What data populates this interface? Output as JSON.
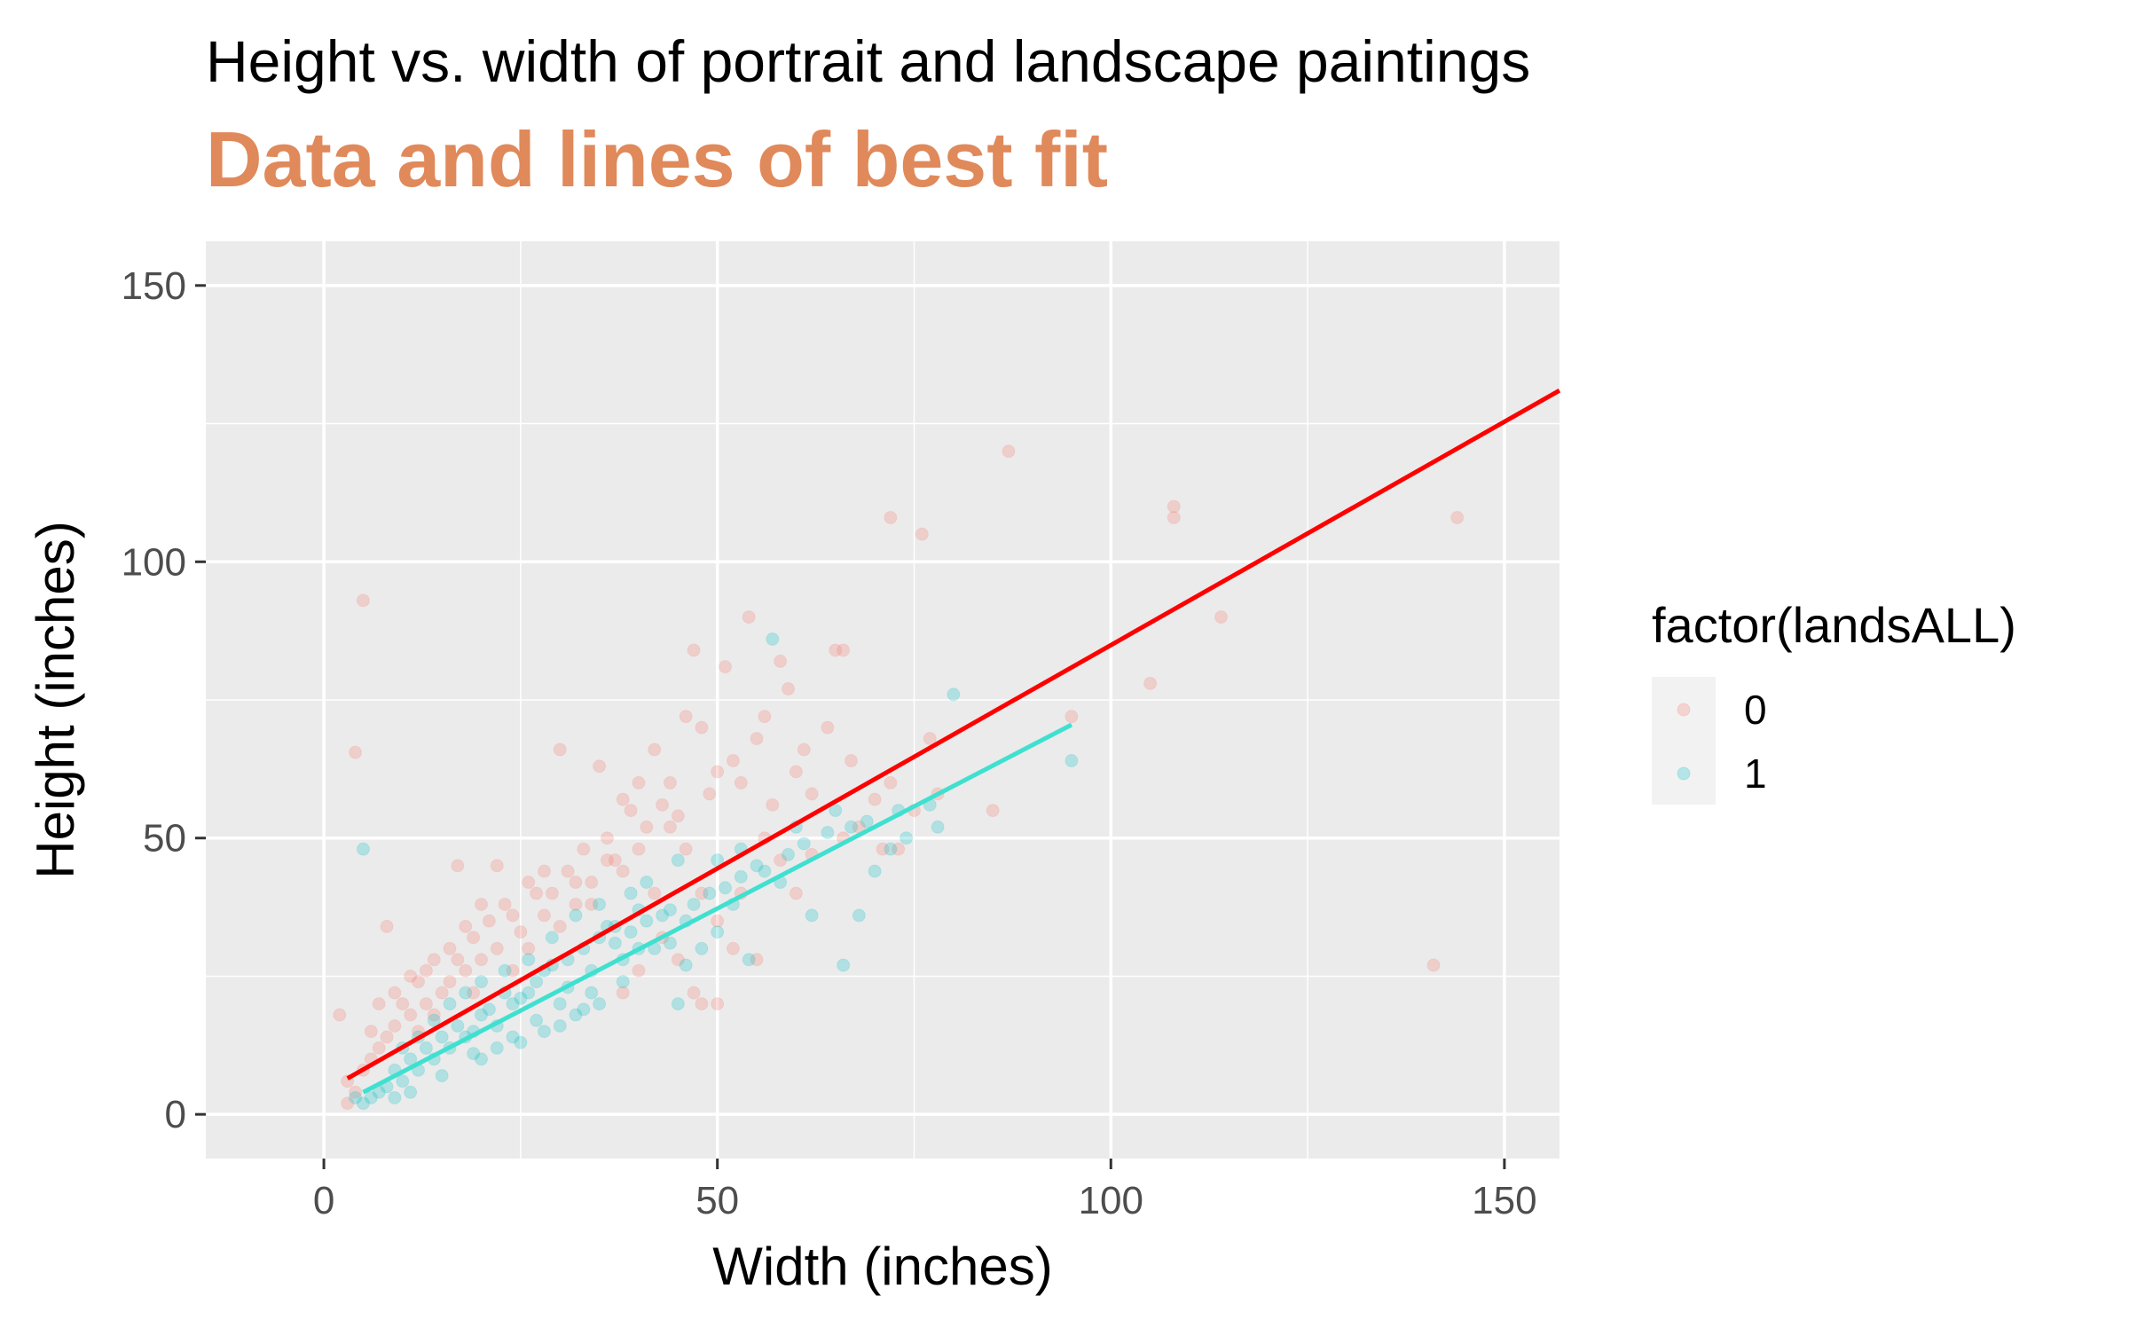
{
  "chart_data": {
    "type": "scatter",
    "title": "Height vs. width of portrait and landscape paintings",
    "subtitle": "Data and lines of best fit",
    "xlabel": "Width (inches)",
    "ylabel": "Height (inches)",
    "xlim": [
      -15,
      157
    ],
    "ylim": [
      -8,
      158
    ],
    "x_ticks": [
      0,
      50,
      100,
      150
    ],
    "y_ticks": [
      0,
      50,
      100,
      150
    ],
    "x_tick_labels": [
      "0",
      "50",
      "100",
      "150"
    ],
    "y_tick_labels": [
      "0",
      "50",
      "100",
      "150"
    ],
    "grid": true,
    "legend": {
      "title": "factor(landsALL)",
      "position": "right"
    },
    "colors": {
      "panel": "#EBEBEB",
      "grid": "#FFFFFF",
      "subtitle": "#E0895A"
    },
    "series": [
      {
        "name": "0",
        "point_color": "#F8766D",
        "point_opacity": 0.25,
        "fit_color": "#FF0000",
        "fit_line": [
          [
            3,
            6.5
          ],
          [
            157,
            131
          ]
        ],
        "points": [
          [
            2,
            18
          ],
          [
            5,
            93
          ],
          [
            4,
            65.5
          ],
          [
            8,
            34
          ],
          [
            17,
            45
          ],
          [
            24,
            36
          ],
          [
            27,
            40
          ],
          [
            30,
            66
          ],
          [
            32,
            38
          ],
          [
            35,
            63
          ],
          [
            38,
            57
          ],
          [
            40,
            60
          ],
          [
            42,
            66
          ],
          [
            46,
            72
          ],
          [
            47,
            84
          ],
          [
            48,
            70
          ],
          [
            50,
            62
          ],
          [
            51,
            81
          ],
          [
            54,
            90
          ],
          [
            56,
            72
          ],
          [
            58,
            82
          ],
          [
            59,
            77
          ],
          [
            61,
            66
          ],
          [
            65,
            84
          ],
          [
            66,
            84
          ],
          [
            67,
            64
          ],
          [
            70,
            57
          ],
          [
            72,
            108
          ],
          [
            76,
            105
          ],
          [
            73,
            48
          ],
          [
            77,
            68
          ],
          [
            78,
            58
          ],
          [
            85,
            55
          ],
          [
            87,
            120
          ],
          [
            95,
            72
          ],
          [
            105,
            78
          ],
          [
            108,
            110
          ],
          [
            108,
            108
          ],
          [
            114,
            90
          ],
          [
            144,
            108
          ],
          [
            141,
            27
          ],
          [
            10,
            20
          ],
          [
            12,
            24
          ],
          [
            14,
            28
          ],
          [
            15,
            22
          ],
          [
            16,
            30
          ],
          [
            18,
            26
          ],
          [
            19,
            32
          ],
          [
            20,
            28
          ],
          [
            21,
            35
          ],
          [
            22,
            30
          ],
          [
            23,
            38
          ],
          [
            25,
            33
          ],
          [
            26,
            42
          ],
          [
            28,
            36
          ],
          [
            29,
            40
          ],
          [
            31,
            44
          ],
          [
            33,
            48
          ],
          [
            34,
            42
          ],
          [
            36,
            50
          ],
          [
            37,
            46
          ],
          [
            39,
            55
          ],
          [
            41,
            52
          ],
          [
            43,
            56
          ],
          [
            44,
            60
          ],
          [
            45,
            54
          ],
          [
            49,
            58
          ],
          [
            52,
            64
          ],
          [
            53,
            60
          ],
          [
            55,
            68
          ],
          [
            57,
            56
          ],
          [
            60,
            62
          ],
          [
            62,
            58
          ],
          [
            64,
            70
          ],
          [
            6,
            10
          ],
          [
            7,
            12
          ],
          [
            8,
            14
          ],
          [
            9,
            16
          ],
          [
            11,
            18
          ],
          [
            13,
            20
          ],
          [
            4,
            4
          ],
          [
            5,
            8
          ],
          [
            3,
            6
          ],
          [
            3,
            2
          ],
          [
            6,
            15
          ],
          [
            7,
            20
          ],
          [
            9,
            22
          ],
          [
            11,
            25
          ],
          [
            12,
            15
          ],
          [
            13,
            26
          ],
          [
            14,
            18
          ],
          [
            16,
            24
          ],
          [
            17,
            28
          ],
          [
            18,
            34
          ],
          [
            19,
            22
          ],
          [
            20,
            38
          ],
          [
            22,
            45
          ],
          [
            24,
            26
          ],
          [
            26,
            30
          ],
          [
            28,
            44
          ],
          [
            30,
            34
          ],
          [
            32,
            42
          ],
          [
            34,
            38
          ],
          [
            36,
            46
          ],
          [
            38,
            44
          ],
          [
            40,
            48
          ],
          [
            42,
            40
          ],
          [
            44,
            52
          ],
          [
            46,
            48
          ],
          [
            48,
            40
          ],
          [
            50,
            35
          ],
          [
            52,
            30
          ],
          [
            48,
            20
          ],
          [
            50,
            20
          ],
          [
            45,
            28
          ],
          [
            47,
            22
          ],
          [
            40,
            26
          ],
          [
            38,
            22
          ],
          [
            43,
            32
          ],
          [
            53,
            40
          ],
          [
            55,
            28
          ],
          [
            56,
            50
          ],
          [
            58,
            46
          ],
          [
            60,
            40
          ],
          [
            62,
            47
          ],
          [
            66,
            50
          ],
          [
            68,
            52
          ],
          [
            72,
            60
          ],
          [
            75,
            55
          ],
          [
            71,
            48
          ]
        ]
      },
      {
        "name": "1",
        "point_color": "#00BFC4",
        "point_opacity": 0.25,
        "fit_color": "#40E0D0",
        "fit_line": [
          [
            5,
            4
          ],
          [
            95,
            70.5
          ]
        ],
        "points": [
          [
            5,
            48
          ],
          [
            57,
            86
          ],
          [
            80,
            76
          ],
          [
            95,
            64
          ],
          [
            68,
            36
          ],
          [
            66,
            27
          ],
          [
            72,
            48
          ],
          [
            78,
            52
          ],
          [
            74,
            50
          ],
          [
            70,
            44
          ],
          [
            62,
            36
          ],
          [
            58,
            42
          ],
          [
            55,
            45
          ],
          [
            52,
            38
          ],
          [
            50,
            33
          ],
          [
            48,
            30
          ],
          [
            46,
            27
          ],
          [
            45,
            20
          ],
          [
            43,
            36
          ],
          [
            40,
            30
          ],
          [
            38,
            24
          ],
          [
            36,
            34
          ],
          [
            34,
            22
          ],
          [
            32,
            18
          ],
          [
            30,
            20
          ],
          [
            28,
            26
          ],
          [
            26,
            22
          ],
          [
            24,
            20
          ],
          [
            22,
            16
          ],
          [
            20,
            18
          ],
          [
            18,
            14
          ],
          [
            16,
            12
          ],
          [
            14,
            10
          ],
          [
            12,
            8
          ],
          [
            10,
            6
          ],
          [
            8,
            5
          ],
          [
            6,
            3
          ],
          [
            5,
            2
          ],
          [
            4,
            3
          ],
          [
            7,
            4
          ],
          [
            9,
            8
          ],
          [
            11,
            10
          ],
          [
            13,
            12
          ],
          [
            15,
            14
          ],
          [
            17,
            16
          ],
          [
            19,
            15
          ],
          [
            21,
            19
          ],
          [
            23,
            22
          ],
          [
            25,
            21
          ],
          [
            27,
            24
          ],
          [
            29,
            27
          ],
          [
            31,
            28
          ],
          [
            33,
            30
          ],
          [
            35,
            32
          ],
          [
            37,
            34
          ],
          [
            39,
            33
          ],
          [
            41,
            35
          ],
          [
            44,
            37
          ],
          [
            47,
            38
          ],
          [
            49,
            40
          ],
          [
            51,
            41
          ],
          [
            53,
            43
          ],
          [
            56,
            44
          ],
          [
            59,
            47
          ],
          [
            61,
            49
          ],
          [
            64,
            51
          ],
          [
            67,
            52
          ],
          [
            69,
            53
          ],
          [
            73,
            55
          ],
          [
            77,
            56
          ],
          [
            20,
            10
          ],
          [
            22,
            12
          ],
          [
            25,
            13
          ],
          [
            28,
            15
          ],
          [
            30,
            16
          ],
          [
            33,
            19
          ],
          [
            35,
            20
          ],
          [
            38,
            28
          ],
          [
            42,
            30
          ],
          [
            44,
            31
          ],
          [
            10,
            12
          ],
          [
            12,
            14
          ],
          [
            14,
            17
          ],
          [
            16,
            20
          ],
          [
            18,
            22
          ],
          [
            20,
            24
          ],
          [
            23,
            26
          ],
          [
            26,
            28
          ],
          [
            29,
            32
          ],
          [
            32,
            36
          ],
          [
            35,
            38
          ],
          [
            39,
            40
          ],
          [
            41,
            42
          ],
          [
            45,
            46
          ],
          [
            53,
            48
          ],
          [
            60,
            52
          ],
          [
            65,
            55
          ],
          [
            9,
            3
          ],
          [
            11,
            4
          ],
          [
            15,
            7
          ],
          [
            19,
            11
          ],
          [
            24,
            14
          ],
          [
            27,
            17
          ],
          [
            31,
            23
          ],
          [
            34,
            26
          ],
          [
            37,
            31
          ],
          [
            40,
            37
          ],
          [
            46,
            35
          ],
          [
            50,
            46
          ],
          [
            54,
            28
          ]
        ]
      }
    ]
  }
}
